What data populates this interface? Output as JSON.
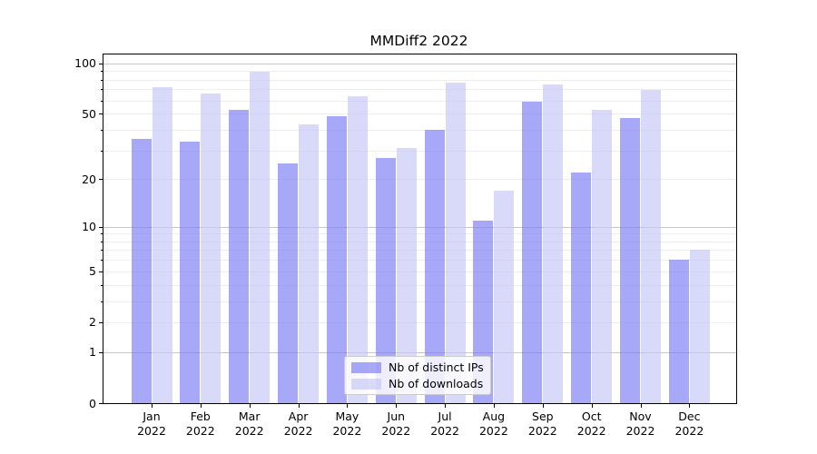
{
  "title": "MMDiff2 2022",
  "chart_data": {
    "type": "bar",
    "title": "MMDiff2 2022",
    "yscale": "log1p",
    "ylim": [
      0,
      113
    ],
    "grid": "both",
    "legend_position": "lower center",
    "categories": [
      "Jan 2022",
      "Feb 2022",
      "Mar 2022",
      "Apr 2022",
      "May 2022",
      "Jun 2022",
      "Jul 2022",
      "Aug 2022",
      "Sep 2022",
      "Oct 2022",
      "Nov 2022",
      "Dec 2022"
    ],
    "y_ticks": [
      {
        "label": "100",
        "value": 100
      },
      {
        "label": "50",
        "value": 50
      },
      {
        "label": "20",
        "value": 20
      },
      {
        "label": "10",
        "value": 10
      },
      {
        "label": "5",
        "value": 5
      },
      {
        "label": "2",
        "value": 2
      },
      {
        "label": "1",
        "value": 1
      },
      {
        "label": "0",
        "value": 0
      }
    ],
    "y_minor_ticks": [
      2,
      3,
      4,
      5,
      6,
      7,
      8,
      9,
      20,
      30,
      40,
      50,
      60,
      70,
      80,
      90
    ],
    "y_major_gridlines": [
      1,
      10,
      100
    ],
    "series": [
      {
        "name": "Nb of distinct IPs",
        "key": "distinct-ips",
        "color": "#a9a9f9",
        "fill_rgba": "rgba(123,123,246,0.66)",
        "values": [
          35,
          34,
          53,
          25,
          48,
          27,
          40,
          11,
          59,
          22,
          47,
          6
        ]
      },
      {
        "name": "Nb of downloads",
        "key": "downloads",
        "color": "#d9d9f9",
        "fill_rgba": "rgba(198,198,248,0.66)",
        "values": [
          72,
          66,
          89,
          43,
          64,
          31,
          77,
          17,
          75,
          53,
          69,
          7
        ]
      }
    ]
  },
  "colors": {
    "background": "#ffffff",
    "axis": "#000000",
    "major_grid": "#c6c6c6",
    "minor_grid": "#ededed",
    "legend_border": "#cccccc"
  }
}
